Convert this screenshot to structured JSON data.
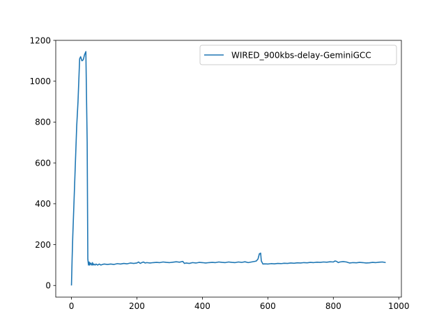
{
  "chart_data": {
    "type": "line",
    "title": "",
    "xlabel": "",
    "ylabel": "",
    "xlim": [
      -48,
      1008
    ],
    "ylim": [
      -57,
      1200
    ],
    "x_ticks": [
      0,
      200,
      400,
      600,
      800,
      1000
    ],
    "y_ticks": [
      0,
      200,
      400,
      600,
      800,
      1000,
      1200
    ],
    "grid": false,
    "legend_position": "top-right",
    "series": [
      {
        "name": "WIRED_900kbs-delay-GeminiGCC",
        "color": "#1f77b4",
        "x": [
          0,
          2,
          4,
          8,
          12,
          16,
          20,
          25,
          28,
          32,
          36,
          40,
          44,
          48,
          50,
          52,
          54,
          56,
          58,
          60,
          62,
          64,
          66,
          68,
          70,
          72,
          75,
          80,
          85,
          90,
          95,
          100,
          110,
          120,
          130,
          140,
          150,
          160,
          170,
          180,
          190,
          200,
          205,
          210,
          215,
          220,
          225,
          230,
          240,
          250,
          260,
          270,
          280,
          290,
          300,
          310,
          320,
          330,
          340,
          345,
          350,
          360,
          370,
          380,
          390,
          400,
          410,
          420,
          430,
          440,
          450,
          460,
          470,
          480,
          490,
          500,
          510,
          520,
          530,
          540,
          550,
          560,
          565,
          570,
          574,
          578,
          580,
          585,
          590,
          600,
          610,
          620,
          630,
          640,
          650,
          660,
          670,
          680,
          690,
          700,
          710,
          720,
          730,
          740,
          750,
          760,
          770,
          780,
          790,
          800,
          805,
          810,
          815,
          820,
          830,
          840,
          850,
          860,
          870,
          880,
          890,
          900,
          910,
          920,
          930,
          940,
          950,
          960
        ],
        "y": [
          0,
          130,
          240,
          420,
          600,
          780,
          900,
          1110,
          1120,
          1100,
          1105,
          1130,
          1145,
          700,
          130,
          100,
          115,
          100,
          110,
          105,
          100,
          112,
          100,
          105,
          103,
          100,
          105,
          100,
          105,
          100,
          103,
          105,
          103,
          105,
          103,
          107,
          105,
          108,
          106,
          110,
          108,
          110,
          115,
          108,
          112,
          115,
          110,
          112,
          110,
          112,
          113,
          112,
          115,
          113,
          112,
          114,
          116,
          114,
          118,
          108,
          110,
          108,
          112,
          110,
          113,
          112,
          110,
          112,
          113,
          112,
          115,
          113,
          112,
          115,
          113,
          112,
          115,
          113,
          116,
          112,
          115,
          118,
          120,
          130,
          155,
          158,
          120,
          105,
          106,
          105,
          107,
          106,
          108,
          107,
          109,
          108,
          110,
          109,
          111,
          110,
          112,
          111,
          113,
          112,
          114,
          113,
          115,
          114,
          116,
          115,
          120,
          118,
          112,
          115,
          117,
          115,
          110,
          112,
          111,
          113,
          112,
          110,
          111,
          113,
          112,
          114,
          115,
          112
        ]
      }
    ]
  }
}
